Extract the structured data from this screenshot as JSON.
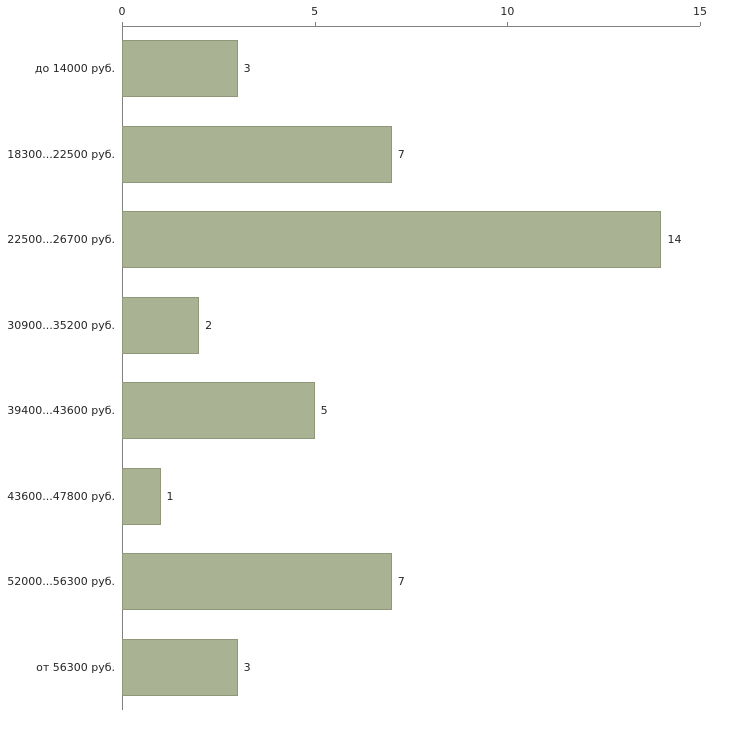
{
  "chart_data": {
    "type": "bar",
    "orientation": "horizontal",
    "title": "",
    "xlabel": "",
    "ylabel": "",
    "categories": [
      "до 14000 руб.",
      "18300...22500 руб.",
      "22500...26700 руб.",
      "30900...35200 руб.",
      "39400...43600 руб.",
      "43600...47800 руб.",
      "52000...56300 руб.",
      "от 56300 руб."
    ],
    "values": [
      3,
      7,
      14,
      2,
      5,
      1,
      7,
      3
    ],
    "xlim": [
      0,
      15
    ],
    "x_ticks": [
      "0",
      "5",
      "10",
      "15"
    ],
    "grid": false,
    "legend": false,
    "axis_position": "top",
    "colors": {
      "bar_fill": "#a9b293",
      "bar_border": "#8f987a",
      "axis": "#808080",
      "text": "#262626",
      "background": "#ffffff"
    }
  }
}
